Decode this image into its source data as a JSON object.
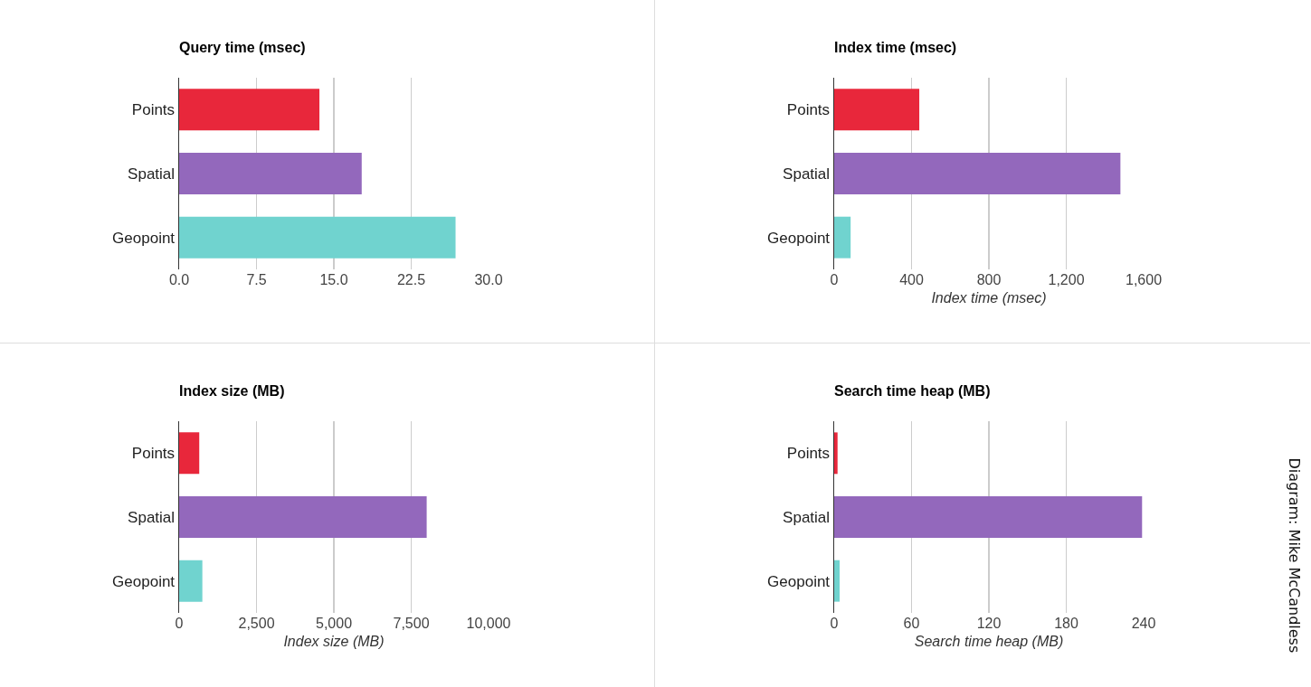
{
  "chart_data": [
    {
      "type": "bar",
      "orientation": "horizontal",
      "title": "Query time (msec)",
      "categories": [
        "Points",
        "Spatial",
        "Geopoint"
      ],
      "values": [
        13.6,
        17.7,
        26.8
      ],
      "colors": [
        "#e8273b",
        "#9368bc",
        "#70d3cf"
      ],
      "xlim": [
        0,
        30
      ],
      "xticks": [
        {
          "value": 0,
          "label": "0.0"
        },
        7.5,
        {
          "value": 15,
          "label": "15.0"
        },
        22.5,
        {
          "value": 30,
          "label": "30.0"
        }
      ],
      "grid": "x"
    },
    {
      "type": "bar",
      "orientation": "horizontal",
      "title": "Index time (msec)",
      "xlabel": "Index time (msec)",
      "categories": [
        "Points",
        "Spatial",
        "Geopoint"
      ],
      "values": [
        440,
        1480,
        85
      ],
      "colors": [
        "#e8273b",
        "#9368bc",
        "#70d3cf"
      ],
      "xlim": [
        0,
        1600
      ],
      "xticks": [
        0,
        400,
        800,
        {
          "value": 1200,
          "label": "1,200"
        },
        {
          "value": 1600,
          "label": "1,600"
        }
      ],
      "grid": "x"
    },
    {
      "type": "bar",
      "orientation": "horizontal",
      "title": "Index size (MB)",
      "xlabel": "Index size (MB)",
      "categories": [
        "Points",
        "Spatial",
        "Geopoint"
      ],
      "values": [
        650,
        8000,
        750
      ],
      "colors": [
        "#e8273b",
        "#9368bc",
        "#70d3cf"
      ],
      "xlim": [
        0,
        10000
      ],
      "xticks": [
        0,
        {
          "value": 2500,
          "label": "2,500"
        },
        {
          "value": 5000,
          "label": "5,000"
        },
        {
          "value": 7500,
          "label": "7,500"
        },
        {
          "value": 10000,
          "label": "10,000"
        }
      ],
      "grid": "x"
    },
    {
      "type": "bar",
      "orientation": "horizontal",
      "title": "Search time heap (MB)",
      "xlabel": "Search time heap (MB)",
      "categories": [
        "Points",
        "Spatial",
        "Geopoint"
      ],
      "values": [
        2.6,
        238.8,
        4.2
      ],
      "colors": [
        "#e8273b",
        "#9368bc",
        "#70d3cf"
      ],
      "xlim": [
        0,
        240
      ],
      "xticks": [
        0,
        60,
        120,
        180,
        240
      ],
      "grid": "x",
      "annotations": [
        "Diagram: Mike McCandless"
      ]
    }
  ]
}
